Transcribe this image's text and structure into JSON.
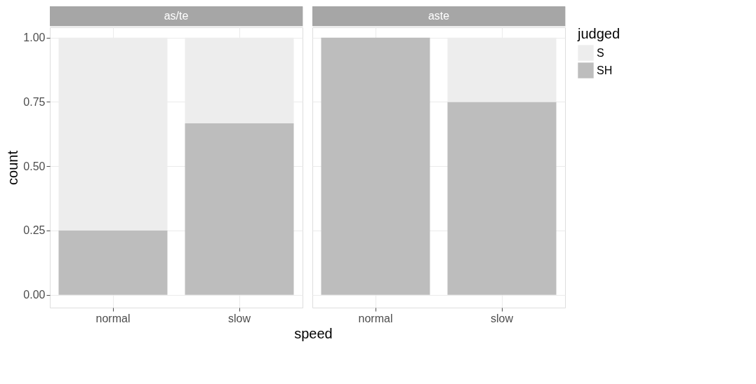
{
  "chart_data": [
    {
      "type": "bar",
      "title": "as/te",
      "ylabel": "count",
      "xlabel": "speed",
      "categories": [
        "normal",
        "slow"
      ],
      "stacked": true,
      "series": [
        {
          "color": "#bdbdbd",
          "values": [
            0.25,
            0.667
          ]
        },
        {
          "color": "#ededed",
          "values": [
            0.75,
            0.333
          ]
        }
      ],
      "ylim": [
        -0.05,
        1.04
      ],
      "yticks": [
        {
          "value": 0,
          "label": "0.00"
        },
        {
          "value": 0.25,
          "label": "0.25"
        },
        {
          "value": 0.5,
          "label": "0.50"
        },
        {
          "value": 0.75,
          "label": "0.75"
        },
        {
          "value": 1,
          "label": "1.00"
        }
      ],
      "grid": true
    },
    {
      "type": "bar",
      "title": "aste",
      "categories": [
        "normal",
        "slow"
      ],
      "stacked": true,
      "legend_title": "judged",
      "series": [
        {
          "name": "SH",
          "color": "#bdbdbd",
          "values": [
            1.0,
            0.75
          ]
        },
        {
          "name": "S",
          "color": "#ededed",
          "values": [
            0,
            0.25
          ]
        }
      ],
      "ylim": [
        -0.05,
        1.04
      ],
      "yticks": [
        0,
        0.25,
        0.5,
        0.75,
        1
      ],
      "grid": true,
      "legend": "right",
      "tick_labels": "x"
    }
  ]
}
